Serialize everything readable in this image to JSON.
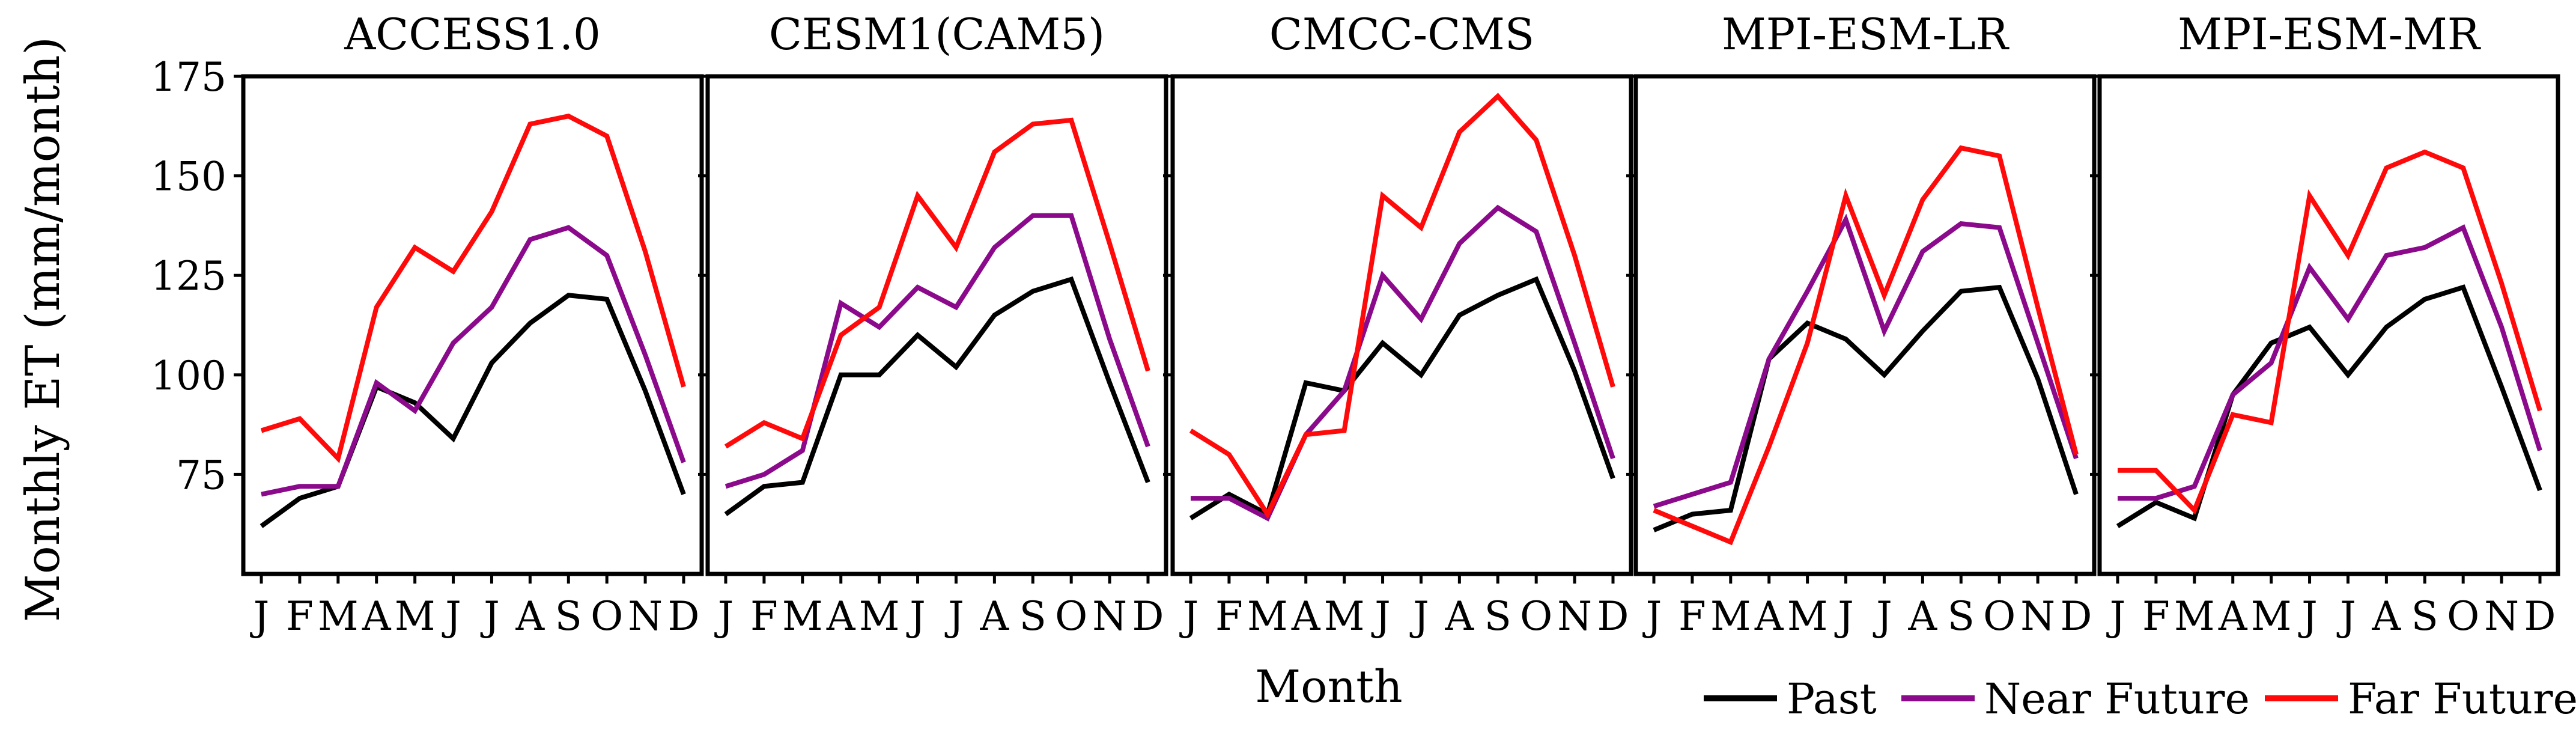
{
  "chart_data": {
    "type": "line",
    "ylabel": "Monthly ET (mm/month)",
    "xlabel": "Month",
    "ylim": [
      50,
      175
    ],
    "yticks": [
      75,
      100,
      125,
      150,
      175
    ],
    "xtick_labels": [
      "J",
      "F",
      "M",
      "A",
      "M",
      "J",
      "J",
      "A",
      "S",
      "O",
      "N",
      "D"
    ],
    "legend": {
      "position": "bottom-right",
      "entries": [
        {
          "name": "Past",
          "color": "#000000"
        },
        {
          "name": "Near Future",
          "color": "#8B0A8B"
        },
        {
          "name": "Far Future",
          "color": "#FF0A0A"
        }
      ]
    },
    "panels": [
      {
        "title": "ACCESS1.0",
        "series": [
          {
            "name": "Past",
            "values": [
              62,
              69,
              72,
              97,
              93,
              84,
              103,
              113,
              120,
              119,
              96,
              70
            ]
          },
          {
            "name": "Near Future",
            "values": [
              70,
              72,
              72,
              98,
              91,
              108,
              117,
              134,
              137,
              130,
              105,
              78
            ]
          },
          {
            "name": "Far Future",
            "values": [
              86,
              89,
              79,
              117,
              132,
              126,
              141,
              163,
              165,
              160,
              131,
              97
            ]
          }
        ]
      },
      {
        "title": "CESM1(CAM5)",
        "series": [
          {
            "name": "Past",
            "values": [
              65,
              72,
              73,
              100,
              100,
              110,
              102,
              115,
              121,
              124,
              98,
              73
            ]
          },
          {
            "name": "Near Future",
            "values": [
              72,
              75,
              81,
              118,
              112,
              122,
              117,
              132,
              140,
              140,
              109,
              82
            ]
          },
          {
            "name": "Far Future",
            "values": [
              82,
              88,
              84,
              110,
              117,
              145,
              132,
              156,
              163,
              164,
              133,
              101
            ]
          }
        ]
      },
      {
        "title": "CMCC-CMS",
        "series": [
          {
            "name": "Past",
            "values": [
              64,
              70,
              65,
              98,
              96,
              108,
              100,
              115,
              120,
              124,
              101,
              74
            ]
          },
          {
            "name": "Near Future",
            "values": [
              69,
              69,
              64,
              85,
              96,
              125,
              114,
              133,
              142,
              136,
              108,
              79
            ]
          },
          {
            "name": "Far Future",
            "values": [
              86,
              80,
              65,
              85,
              86,
              145,
              137,
              161,
              170,
              159,
              130,
              97
            ]
          }
        ]
      },
      {
        "title": "MPI-ESM-LR",
        "series": [
          {
            "name": "Past",
            "values": [
              61,
              65,
              66,
              104,
              113,
              109,
              100,
              111,
              121,
              122,
              99,
              70
            ]
          },
          {
            "name": "Near Future",
            "values": [
              67,
              70,
              73,
              104,
              121,
              139,
              111,
              131,
              138,
              137,
              108,
              79
            ]
          },
          {
            "name": "Far Future",
            "values": [
              66,
              62,
              58,
              82,
              108,
              145,
              120,
              144,
              157,
              155,
              117,
              80
            ]
          }
        ]
      },
      {
        "title": "MPI-ESM-MR",
        "series": [
          {
            "name": "Past",
            "values": [
              62,
              68,
              64,
              95,
              108,
              112,
              100,
              112,
              119,
              122,
              97,
              71
            ]
          },
          {
            "name": "Near Future",
            "values": [
              69,
              69,
              72,
              95,
              103,
              127,
              114,
              130,
              132,
              137,
              112,
              81
            ]
          },
          {
            "name": "Far Future",
            "values": [
              76,
              76,
              66,
              90,
              88,
              145,
              130,
              152,
              156,
              152,
              123,
              91
            ]
          }
        ]
      }
    ]
  }
}
